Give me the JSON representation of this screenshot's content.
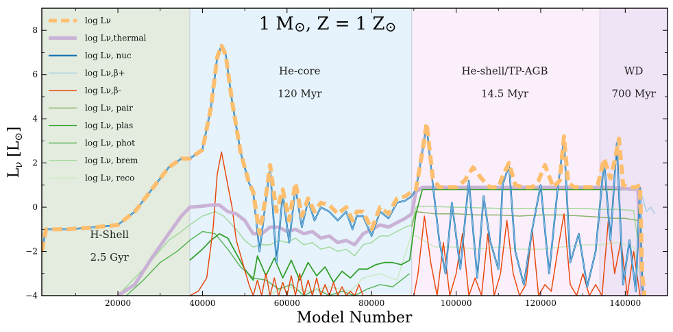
{
  "chart_data": {
    "type": "line",
    "title": "1 M⊙, Z = 1 Z⊙",
    "xlabel": "Model Number",
    "ylabel": "Lν [L⊙]",
    "xlim": [
      2000,
      150000
    ],
    "ylim": [
      -4,
      9
    ],
    "xticks": [
      20000,
      40000,
      60000,
      80000,
      100000,
      120000,
      140000
    ],
    "yticks": [
      -4,
      -2,
      0,
      2,
      4,
      6,
      8
    ],
    "phases": [
      {
        "name": "H-Shell",
        "duration": "2.5 Gyr",
        "x0": 2000,
        "x1": 37000,
        "color": "#e4ecdf",
        "label_x": 18000,
        "label_y": -1.4
      },
      {
        "name": "He-core",
        "duration": "120 Myr",
        "x0": 37000,
        "x1": 89500,
        "color": "#e6f3fc",
        "label_x": 63000,
        "label_y": 6.0
      },
      {
        "name": "He-shell/TP-AGB",
        "duration": "14.5 Myr",
        "x0": 89500,
        "x1": 134000,
        "color": "#fbeffb",
        "label_x": 111500,
        "label_y": 6.0
      },
      {
        "name": "WD",
        "duration": "700 Myr",
        "x0": 134000,
        "x1": 150000,
        "color": "#efe3f6",
        "label_x": 142000,
        "label_y": 6.0
      }
    ],
    "series": [
      {
        "name": "log Lν",
        "color": "#fdbf6f",
        "width": 6,
        "dash": "14 7",
        "x": [
          2000,
          3000,
          8000,
          15000,
          20000,
          24000,
          28000,
          32000,
          35000,
          37000,
          40000,
          42000,
          43500,
          44500,
          45500,
          47000,
          49000,
          51000,
          52000,
          53500,
          55000,
          56000,
          57500,
          59000,
          60500,
          62000,
          63500,
          65000,
          66500,
          68000,
          70000,
          72000,
          74000,
          75500,
          76500,
          78000,
          80000,
          82000,
          84000,
          86000,
          88000,
          89500,
          90500,
          92000,
          93000,
          94500,
          96000,
          98000,
          100000,
          102000,
          104000,
          106000,
          108000,
          110000,
          111000,
          112500,
          114000,
          116000,
          118000,
          119500,
          121000,
          123000,
          124500,
          125500,
          126500,
          128000,
          130000,
          132000,
          133500,
          135000,
          136500,
          137500,
          138500,
          139500,
          141000,
          142500,
          143500,
          144000,
          144500
        ],
        "y": [
          -2.0,
          -1.0,
          -1.0,
          -0.9,
          -0.8,
          -0.2,
          0.8,
          1.8,
          2.2,
          2.2,
          2.6,
          4.5,
          6.8,
          7.3,
          6.9,
          4.8,
          2.5,
          1.1,
          0.7,
          -1.2,
          0.5,
          1.9,
          -0.2,
          0.8,
          -0.6,
          1.1,
          -0.4,
          0.4,
          -0.2,
          0.2,
          0.1,
          -0.3,
          0.0,
          -0.6,
          -0.2,
          -0.2,
          -1.0,
          0.0,
          -0.3,
          0.4,
          0.5,
          0.7,
          0.8,
          2.5,
          3.8,
          1.3,
          0.9,
          0.9,
          0.9,
          1.2,
          1.8,
          1.3,
          0.9,
          0.9,
          1.4,
          2.0,
          1.0,
          0.9,
          0.9,
          1.2,
          1.9,
          0.9,
          1.2,
          3.2,
          1.1,
          0.9,
          0.9,
          0.9,
          1.0,
          2.2,
          1.3,
          2.1,
          3.1,
          1.0,
          0.9,
          0.9,
          1.0,
          -3.0,
          -4.0
        ]
      },
      {
        "name": "log Lν,thermal",
        "color": "#cab2d6",
        "width": 5,
        "dash": "",
        "x": [
          20000,
          24000,
          28000,
          32000,
          35000,
          37000,
          40000,
          42000,
          44000,
          46000,
          48000,
          50000,
          52000,
          54000,
          56000,
          58000,
          60000,
          62000,
          64000,
          66000,
          68000,
          70000,
          72000,
          74000,
          76000,
          78000,
          80000,
          82000,
          84000,
          86000,
          88000,
          89500,
          90500,
          92000,
          100000,
          110000,
          120000,
          130000,
          134000,
          136000,
          140000,
          143000,
          144000
        ],
        "y": [
          -4.0,
          -3.5,
          -2.3,
          -1.2,
          -0.4,
          0.0,
          0.05,
          0.1,
          0.1,
          -0.2,
          -0.3,
          -0.6,
          -1.2,
          -1.2,
          -0.9,
          -0.9,
          -1.1,
          -1.0,
          -1.2,
          -1.1,
          -1.4,
          -1.3,
          -1.6,
          -1.5,
          -1.7,
          -1.2,
          -1.0,
          -0.8,
          -0.9,
          -0.7,
          -0.5,
          -0.3,
          0.7,
          0.9,
          0.9,
          0.9,
          0.9,
          0.9,
          0.9,
          0.9,
          0.85,
          0.8,
          -4.0
        ]
      },
      {
        "name": "log Lν, nuc",
        "color": "#1f78b4",
        "width": 2.5,
        "dash": "",
        "x": [
          2000,
          3000,
          8000,
          15000,
          20000,
          24000,
          28000,
          32000,
          35000,
          37000,
          40000,
          42000,
          43500,
          44500,
          45500,
          47000,
          49000,
          51000,
          52000,
          53500,
          55000,
          56000,
          57500,
          59000,
          60500,
          62000,
          63500,
          65000,
          66500,
          68000,
          70000,
          72000,
          74000,
          75500,
          76500,
          78000,
          80000,
          82000,
          84000,
          86000,
          88000,
          89500,
          90500,
          92000,
          93000,
          94500,
          96000,
          97500,
          99000,
          101000,
          103000,
          105000,
          106500,
          108000,
          110000,
          111000,
          112500,
          114000,
          116000,
          118000,
          120000,
          122000,
          124000,
          125500,
          127000,
          129000,
          131000,
          133000,
          135000,
          136500,
          138000,
          139500,
          141000,
          142500,
          143500,
          144000,
          144500
        ],
        "y": [
          -2.0,
          -1.0,
          -1.0,
          -0.9,
          -0.8,
          -0.2,
          0.8,
          1.8,
          2.2,
          2.2,
          2.6,
          4.5,
          6.8,
          7.3,
          6.9,
          4.8,
          2.5,
          1.1,
          0.7,
          -2.0,
          0.3,
          1.8,
          -2.5,
          0.6,
          -1.6,
          0.9,
          -0.9,
          0.3,
          -0.6,
          0.0,
          -0.2,
          -0.6,
          -0.2,
          -1.0,
          -0.4,
          -0.4,
          -1.3,
          -0.2,
          -0.5,
          0.2,
          0.3,
          0.5,
          0.8,
          2.5,
          3.7,
          1.0,
          -1.5,
          -3.0,
          0.2,
          -2.8,
          1.2,
          -3.2,
          0.5,
          -1.5,
          -2.8,
          1.0,
          1.9,
          -2.0,
          -3.5,
          -1.0,
          1.0,
          -3.0,
          0.8,
          3.1,
          -2.5,
          -1.2,
          -3.6,
          -2.0,
          2.1,
          -1.5,
          2.9,
          -3.5,
          -1.5,
          -3.8,
          0.9,
          -3.5,
          -4.0
        ]
      },
      {
        "name": "log Lν,β+",
        "color": "#a6cee3",
        "width": 1.5,
        "dash": "",
        "x": [
          144000,
          145000,
          146000,
          147000
        ],
        "y": [
          0.5,
          -0.2,
          0.0,
          -0.3
        ]
      },
      {
        "name": "log Lν,β-",
        "color": "#e8480e",
        "width": 1.5,
        "dash": "",
        "x": [
          37000,
          39000,
          41000,
          42500,
          43500,
          44500,
          45500,
          47000,
          48000,
          49500,
          51000,
          52000,
          53000,
          54000,
          55000,
          56000,
          57000,
          58000,
          59000,
          60000,
          61000,
          62000,
          63000,
          64000,
          65000,
          66000,
          67000,
          68000,
          69000,
          70000,
          71000,
          72000,
          73000,
          74000,
          75000,
          76000,
          77000,
          78000,
          90000,
          91000,
          92500,
          94000,
          95500,
          97000,
          98500,
          100000,
          101500,
          103000,
          104500,
          106000,
          107500,
          109000,
          110500,
          112000,
          113500,
          115000,
          116500,
          118000,
          119500,
          121000,
          122500,
          124000,
          125500,
          127000,
          128500,
          130000,
          131500,
          133000,
          134500,
          136000,
          137500,
          139000,
          140500,
          142000,
          143500
        ],
        "y": [
          -4.0,
          -3.8,
          -3.2,
          -1.0,
          1.5,
          2.5,
          1.5,
          0.0,
          -1.5,
          -2.5,
          -3.5,
          -4.0,
          -3.3,
          -4.0,
          -3.0,
          -4.0,
          -3.2,
          -4.0,
          -3.4,
          -4.0,
          -3.1,
          -4.0,
          -3.0,
          -4.0,
          -3.3,
          -4.0,
          -3.2,
          -4.0,
          -3.5,
          -4.0,
          -3.4,
          -4.0,
          -3.6,
          -4.0,
          -3.8,
          -4.0,
          -3.5,
          -4.0,
          -4.0,
          -3.0,
          -0.4,
          -2.5,
          -4.0,
          -1.6,
          -4.0,
          -3.0,
          -1.2,
          -4.0,
          -3.2,
          -4.0,
          -1.2,
          -4.0,
          -3.0,
          -0.6,
          -3.0,
          -4.0,
          -3.5,
          -1.0,
          -4.0,
          -3.5,
          -3.8,
          -2.0,
          -0.3,
          -3.5,
          -4.0,
          -3.0,
          -4.0,
          -3.5,
          -4.0,
          -0.6,
          -3.0,
          -1.5,
          -4.0,
          -2.0,
          -4.0
        ]
      },
      {
        "name": "log Lν, pair",
        "color": "#8cb369",
        "width": 1.5,
        "dash": "",
        "x": [
          89500,
          90500,
          95000,
          100000,
          105000,
          110000,
          115000,
          120000,
          125000,
          130000,
          134000,
          137000,
          140000,
          143000,
          144000
        ],
        "y": [
          -0.9,
          -0.2,
          -0.3,
          -0.3,
          -0.35,
          -0.35,
          -0.4,
          -0.35,
          -0.35,
          -0.4,
          -0.45,
          -0.5,
          -0.5,
          -0.6,
          -3.0
        ]
      },
      {
        "name": "log Lν, plas",
        "color": "#33a02c",
        "width": 1.8,
        "dash": "",
        "x": [
          37000,
          40000,
          42000,
          44000,
          46000,
          48000,
          50000,
          52000,
          53000,
          55000,
          57000,
          59000,
          61000,
          63000,
          65000,
          67000,
          69000,
          71000,
          73000,
          75000,
          77000,
          79000,
          81000,
          83000,
          85000,
          87000,
          89000,
          90500,
          92000,
          100000,
          110000,
          120000,
          130000,
          134000,
          137000,
          140000,
          143000,
          144000
        ],
        "y": [
          -2.4,
          -1.9,
          -1.5,
          -1.2,
          -1.4,
          -2.1,
          -2.8,
          -3.3,
          -2.2,
          -3.1,
          -2.3,
          -3.2,
          -2.4,
          -3.3,
          -2.5,
          -3.1,
          -2.7,
          -3.4,
          -2.9,
          -3.2,
          -2.8,
          -2.8,
          -2.6,
          -2.5,
          -2.5,
          -2.6,
          -2.4,
          -0.3,
          0.8,
          0.8,
          0.8,
          0.8,
          0.8,
          0.8,
          0.8,
          0.8,
          0.75,
          -3.5
        ]
      },
      {
        "name": "log Lν, phot",
        "color": "#5ab55a",
        "width": 1.5,
        "dash": "",
        "x": [
          22000,
          26000,
          30000,
          34000,
          37000,
          40000,
          43000,
          46000,
          49000,
          52000,
          55000,
          58000,
          61000,
          64000,
          67000,
          70000,
          73000,
          76000,
          79000,
          82000,
          85000,
          89000
        ],
        "y": [
          -4.0,
          -3.3,
          -2.5,
          -2.0,
          -1.5,
          -1.1,
          -1.2,
          -1.9,
          -2.7,
          -3.2,
          -3.3,
          -3.7,
          -3.5,
          -4.0,
          -3.7,
          -4.0,
          -3.8,
          -4.0,
          -3.7,
          -3.5,
          -3.6,
          -3.0
        ]
      },
      {
        "name": "log Lν, brem",
        "color": "#a1d99b",
        "width": 1.5,
        "dash": "",
        "x": [
          20000,
          24000,
          28000,
          32000,
          35000,
          37000,
          40000,
          43000,
          45000,
          48000,
          50000,
          52000,
          54000,
          56000,
          58000,
          60000,
          62000,
          64000,
          66000,
          68000,
          70000,
          72000,
          74000,
          76000,
          78000,
          80000,
          82000,
          84000,
          86000,
          88000,
          89500,
          90500,
          92000,
          100000,
          110000,
          120000,
          130000,
          134000,
          138000,
          142000,
          144000
        ],
        "y": [
          -4.0,
          -3.2,
          -2.4,
          -1.5,
          -1.1,
          -0.8,
          -0.4,
          -0.2,
          -0.4,
          -1.0,
          -1.5,
          -1.8,
          -1.7,
          -1.7,
          -1.5,
          -1.6,
          -1.4,
          -1.7,
          -1.6,
          -1.9,
          -1.8,
          -2.0,
          -1.9,
          -2.2,
          -1.7,
          -1.6,
          -1.3,
          -1.3,
          -1.1,
          -0.9,
          -0.8,
          0.0,
          0.05,
          0.0,
          -0.05,
          -0.05,
          -0.05,
          -0.1,
          -0.1,
          -0.15,
          -3.0
        ]
      },
      {
        "name": "log Lν, reco",
        "color": "#c7e9c0",
        "width": 1.5,
        "dash": "",
        "x": [
          55000,
          60000,
          65000,
          70000,
          75000,
          78000,
          82000,
          86000,
          89500,
          95000,
          100000,
          105000,
          110000,
          115000,
          120000,
          125000,
          130000,
          134000,
          138000,
          142000,
          144000
        ],
        "y": [
          -4.0,
          -3.6,
          -3.8,
          -3.6,
          -3.8,
          -3.2,
          -3.0,
          -3.3,
          -1.2,
          -1.8,
          -1.8,
          -1.9,
          -1.8,
          -1.9,
          -1.9,
          -1.8,
          -1.7,
          -1.7,
          -1.6,
          -1.8,
          -3.5
        ]
      }
    ]
  }
}
